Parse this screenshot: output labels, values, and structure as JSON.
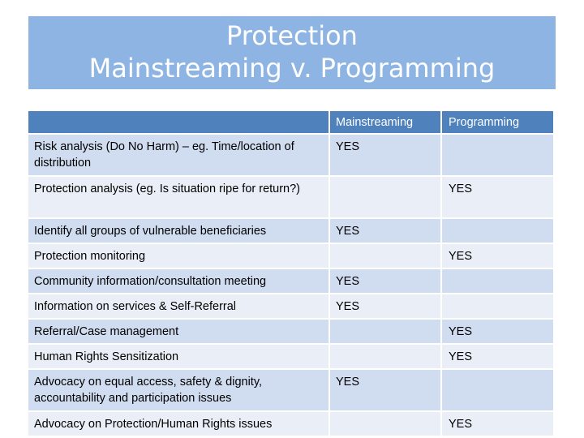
{
  "title": {
    "line1": "Protection",
    "line2": "Mainstreaming v. Programming"
  },
  "table": {
    "headers": [
      "",
      "Mainstreaming",
      "Programming"
    ],
    "rows": [
      {
        "activity": "Risk analysis (Do No Harm) – eg. Time/location of distribution",
        "mainstreaming": "YES",
        "programming": ""
      },
      {
        "activity": "Protection analysis (eg. Is situation ripe for return?)",
        "mainstreaming": "",
        "programming": "YES"
      },
      {
        "activity": "Identify all groups of vulnerable beneficiaries",
        "mainstreaming": "YES",
        "programming": ""
      },
      {
        "activity": "Protection monitoring",
        "mainstreaming": "",
        "programming": "YES"
      },
      {
        "activity": "Community information/consultation meeting",
        "mainstreaming": "YES",
        "programming": ""
      },
      {
        "activity": "Information on services & Self-Referral",
        "mainstreaming": "YES",
        "programming": ""
      },
      {
        "activity": "Referral/Case management",
        "mainstreaming": "",
        "programming": "YES"
      },
      {
        "activity": "Human Rights Sensitization",
        "mainstreaming": "",
        "programming": "YES"
      },
      {
        "activity": "Advocacy on equal access, safety & dignity, accountability and participation issues",
        "mainstreaming": "YES",
        "programming": ""
      },
      {
        "activity": "Advocacy on Protection/Human Rights issues",
        "mainstreaming": "",
        "programming": "YES"
      }
    ]
  },
  "colors": {
    "title_band": "#8db4e2",
    "header_row": "#4f81bd",
    "row_dark": "#d0dcef",
    "row_light": "#e9eef7"
  }
}
